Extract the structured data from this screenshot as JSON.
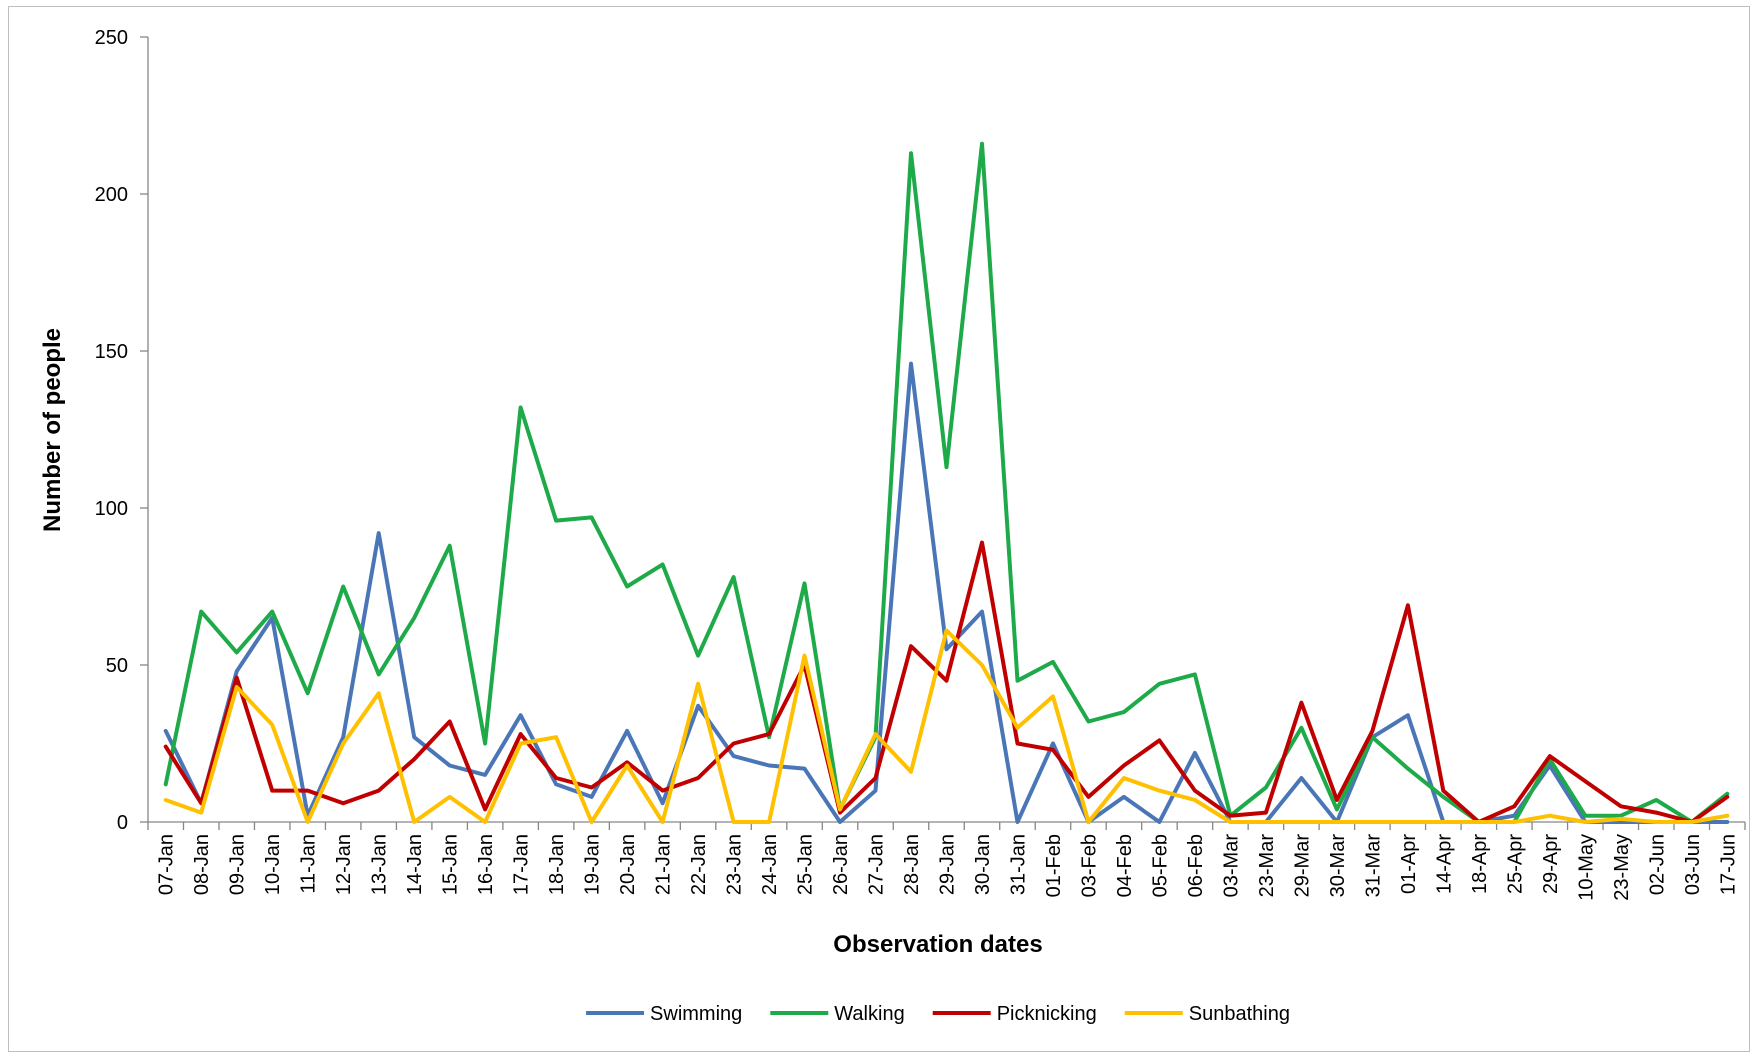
{
  "chart_data": {
    "type": "line",
    "xlabel": "Observation dates",
    "ylabel": "Number of people",
    "ylim": [
      0,
      250
    ],
    "yticks": [
      0,
      50,
      100,
      150,
      200,
      250
    ],
    "grid": false,
    "legend_position": "bottom",
    "categories": [
      "07-Jan",
      "08-Jan",
      "09-Jan",
      "10-Jan",
      "11-Jan",
      "12-Jan",
      "13-Jan",
      "14-Jan",
      "15-Jan",
      "16-Jan",
      "17-Jan",
      "18-Jan",
      "19-Jan",
      "20-Jan",
      "21-Jan",
      "22-Jan",
      "23-Jan",
      "24-Jan",
      "25-Jan",
      "26-Jan",
      "27-Jan",
      "28-Jan",
      "29-Jan",
      "30-Jan",
      "31-Jan",
      "01-Feb",
      "03-Feb",
      "04-Feb",
      "05-Feb",
      "06-Feb",
      "03-Mar",
      "23-Mar",
      "29-Mar",
      "30-Mar",
      "31-Mar",
      "01-Apr",
      "14-Apr",
      "18-Apr",
      "25-Apr",
      "29-Apr",
      "10-May",
      "23-May",
      "02-Jun",
      "03-Jun",
      "17-Jun"
    ],
    "series": [
      {
        "name": "Swimming",
        "color": "#4a76b8",
        "values": [
          29,
          6,
          48,
          65,
          2,
          27,
          92,
          27,
          18,
          15,
          34,
          12,
          8,
          29,
          6,
          37,
          21,
          18,
          17,
          0,
          10,
          146,
          55,
          67,
          0,
          25,
          0,
          8,
          0,
          22,
          0,
          0,
          14,
          0,
          27,
          34,
          0,
          0,
          2,
          18,
          0,
          0,
          0,
          0,
          0
        ]
      },
      {
        "name": "Walking",
        "color": "#1faa4a",
        "values": [
          12,
          67,
          54,
          67,
          41,
          75,
          47,
          65,
          88,
          25,
          132,
          96,
          97,
          75,
          82,
          53,
          78,
          27,
          76,
          4,
          27,
          213,
          113,
          216,
          45,
          51,
          32,
          35,
          44,
          47,
          2,
          11,
          30,
          4,
          27,
          17,
          8,
          0,
          0,
          20,
          2,
          2,
          7,
          0,
          9
        ]
      },
      {
        "name": "Picknicking",
        "color": "#c00000",
        "values": [
          24,
          6,
          46,
          10,
          10,
          6,
          10,
          20,
          32,
          4,
          28,
          14,
          11,
          19,
          10,
          14,
          25,
          28,
          50,
          3,
          14,
          56,
          45,
          89,
          25,
          23,
          8,
          18,
          26,
          10,
          2,
          3,
          38,
          7,
          29,
          69,
          10,
          0,
          5,
          21,
          13,
          5,
          3,
          0,
          8
        ]
      },
      {
        "name": "Sunbathing",
        "color": "#ffc000",
        "values": [
          7,
          3,
          43,
          31,
          0,
          25,
          41,
          0,
          8,
          0,
          25,
          27,
          0,
          18,
          0,
          44,
          0,
          0,
          53,
          4,
          28,
          16,
          61,
          50,
          30,
          40,
          0,
          14,
          10,
          7,
          0,
          0,
          0,
          0,
          0,
          0,
          0,
          0,
          0,
          2,
          0,
          1,
          0,
          0,
          2
        ]
      }
    ]
  }
}
